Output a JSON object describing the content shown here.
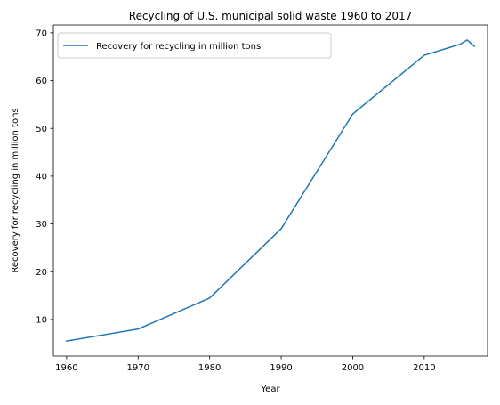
{
  "chart_data": {
    "type": "line",
    "title": "Recycling of U.S. municipal solid waste 1960 to 2017",
    "xlabel": "Year",
    "ylabel": "Recovery for recycling in million tons",
    "xlim": [
      1958.15,
      2018.85
    ],
    "ylim": [
      2.35,
      71.65
    ],
    "x_ticks": [
      1960,
      1970,
      1980,
      1990,
      2000,
      2010
    ],
    "y_ticks": [
      10,
      20,
      30,
      40,
      50,
      60,
      70
    ],
    "grid": false,
    "legend_position": "top-left",
    "series": [
      {
        "name": "Recovery for recycling in million tons",
        "color": "#1f77b4",
        "x": [
          1960,
          1970,
          1980,
          1990,
          2000,
          2010,
          2015,
          2016,
          2017
        ],
        "y": [
          5.5,
          8.0,
          14.5,
          29.0,
          53.0,
          65.3,
          67.6,
          68.5,
          67.2
        ]
      }
    ]
  }
}
